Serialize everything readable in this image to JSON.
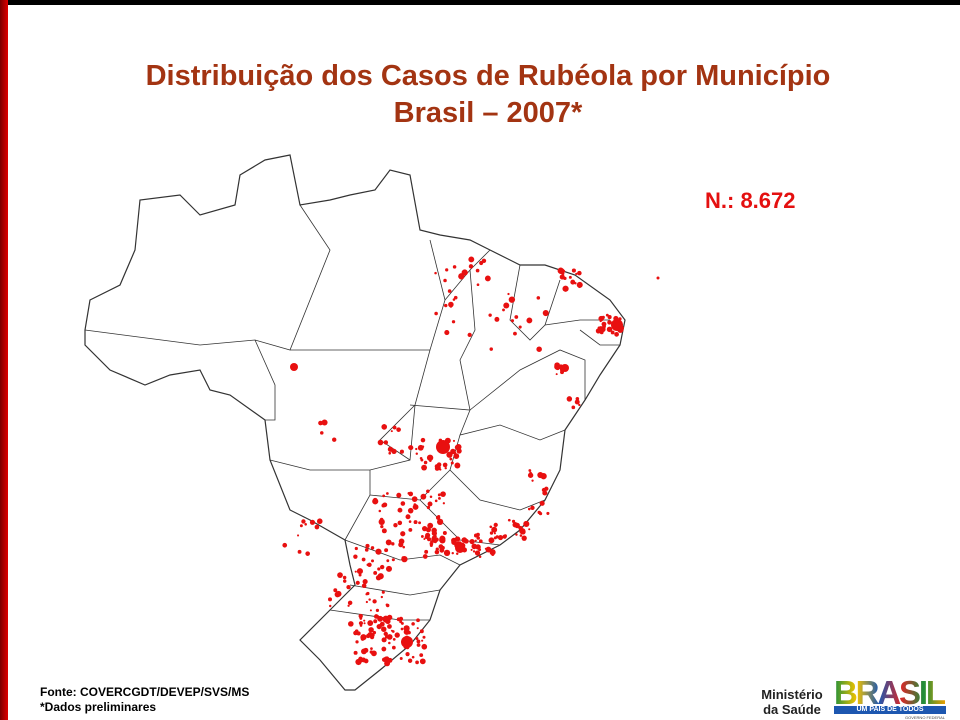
{
  "header": {
    "title_line1": "Distribuição dos Casos de Rubéola por Município",
    "title_line2": "Brasil – 2007*"
  },
  "map": {
    "total_label": "N.: 8.672"
  },
  "footer": {
    "source": "Fonte: COVERCGDT/DEVEP/SVS/MS",
    "note": "*Dados preliminares"
  },
  "logos": {
    "ministry_line1": "Ministério",
    "ministry_line2": "da Saúde",
    "brand": "BRASIL",
    "slogan": "UM PAÍS DE TODOS",
    "government": "GOVERNO FEDERAL"
  }
}
